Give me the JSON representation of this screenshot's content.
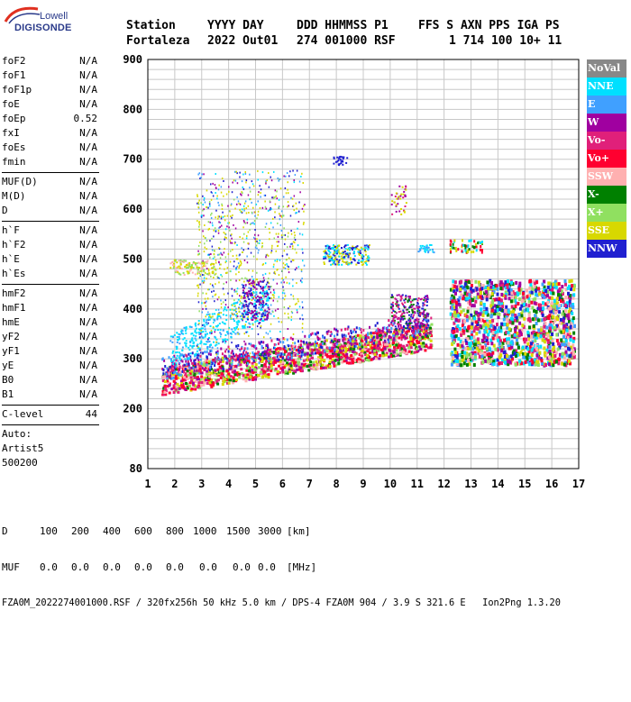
{
  "logo": {
    "line1": "Lowell",
    "line2": "DIGISONDE"
  },
  "header": {
    "labels": [
      "Station",
      "YYYY DAY",
      "DDD HHMMSS P1",
      "FFS S AXN PPS IGA PS"
    ],
    "values": [
      "Fortaleza",
      "2022 Out01",
      "274 001000 RSF",
      "1 714 100 10+ 11"
    ]
  },
  "params": {
    "group1": [
      {
        "name": "foF2",
        "value": "N/A"
      },
      {
        "name": "foF1",
        "value": "N/A"
      },
      {
        "name": "foF1p",
        "value": "N/A"
      },
      {
        "name": "foE",
        "value": "N/A"
      },
      {
        "name": "foEp",
        "value": "0.52"
      },
      {
        "name": "fxI",
        "value": "N/A"
      },
      {
        "name": "foEs",
        "value": "N/A"
      },
      {
        "name": "fmin",
        "value": "N/A"
      }
    ],
    "group2": [
      {
        "name": "MUF(D)",
        "value": "N/A"
      },
      {
        "name": "M(D)",
        "value": "N/A"
      },
      {
        "name": "D",
        "value": "N/A"
      }
    ],
    "group3": [
      {
        "name": "h`F",
        "value": "N/A"
      },
      {
        "name": "h`F2",
        "value": "N/A"
      },
      {
        "name": "h`E",
        "value": "N/A"
      },
      {
        "name": "h`Es",
        "value": "N/A"
      }
    ],
    "group4": [
      {
        "name": "hmF2",
        "value": "N/A"
      },
      {
        "name": "hmF1",
        "value": "N/A"
      },
      {
        "name": "hmE",
        "value": "N/A"
      },
      {
        "name": "yF2",
        "value": "N/A"
      },
      {
        "name": "yF1",
        "value": "N/A"
      },
      {
        "name": "yE",
        "value": "N/A"
      },
      {
        "name": "B0",
        "value": "N/A"
      },
      {
        "name": "B1",
        "value": "N/A"
      }
    ],
    "clevel": {
      "name": "C-level",
      "value": "44"
    },
    "auto": [
      "Auto:",
      "Artist5",
      "500200"
    ]
  },
  "plot": {
    "y_ticks": [
      "900",
      "800",
      "700",
      "600",
      "500",
      "400",
      "300",
      "200",
      "80"
    ],
    "x_ticks": [
      "1",
      "2",
      "3",
      "4",
      "5",
      "6",
      "7",
      "8",
      "9",
      "10",
      "11",
      "12",
      "13",
      "14",
      "15",
      "16",
      "17"
    ]
  },
  "legend": [
    {
      "label": "NoVal",
      "color": "#888888"
    },
    {
      "label": "NNE",
      "color": "#00e0ff"
    },
    {
      "label": "E",
      "color": "#40a0ff"
    },
    {
      "label": "W",
      "color": "#a000a0"
    },
    {
      "label": "Vo-",
      "color": "#e0207a"
    },
    {
      "label": "Vo+",
      "color": "#ff0030"
    },
    {
      "label": "SSW",
      "color": "#ffb0b0"
    },
    {
      "label": "X-",
      "color": "#008000"
    },
    {
      "label": "X+",
      "color": "#90e060"
    },
    {
      "label": "SSE",
      "color": "#d8d800"
    },
    {
      "label": "NNW",
      "color": "#2020d0"
    }
  ],
  "bottom": {
    "d_label": "D",
    "d_values": [
      "100",
      "200",
      "400",
      "600",
      "800",
      "1000",
      "1500",
      "3000",
      "[km]"
    ],
    "muf_label": "MUF",
    "muf_values": [
      "0.0",
      "0.0",
      "0.0",
      "0.0",
      "0.0",
      "0.0",
      "0.0",
      "0.0",
      "[MHz]"
    ],
    "footer": "FZA0M_2022274001000.RSF / 320fx256h 50 kHz 5.0 km / DPS-4 FZA0M 904 / 3.9 S 321.6 E   Ion2Png 1.3.20"
  }
}
